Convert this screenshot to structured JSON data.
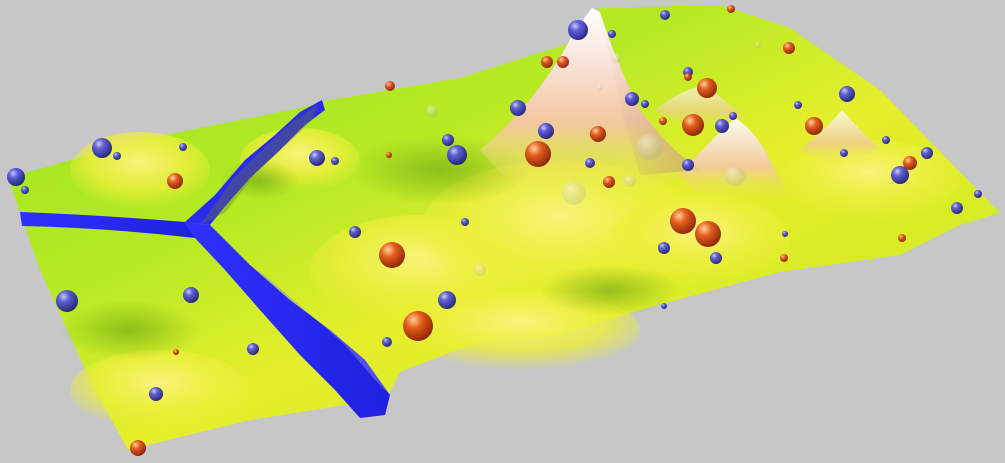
{
  "scene": {
    "description_visible_text": "",
    "colors": {
      "background": "#c7c7c7",
      "terrain_low": "#8fe31f",
      "terrain_mid": "#e6ee2b",
      "terrain_high": "#f7b79a",
      "peak": "#ffffff",
      "river": "#2b2bff",
      "sphere_blue": "#3a3acc",
      "sphere_red": "#d03010",
      "sphere_translucent": "#c8c8a0"
    }
  }
}
